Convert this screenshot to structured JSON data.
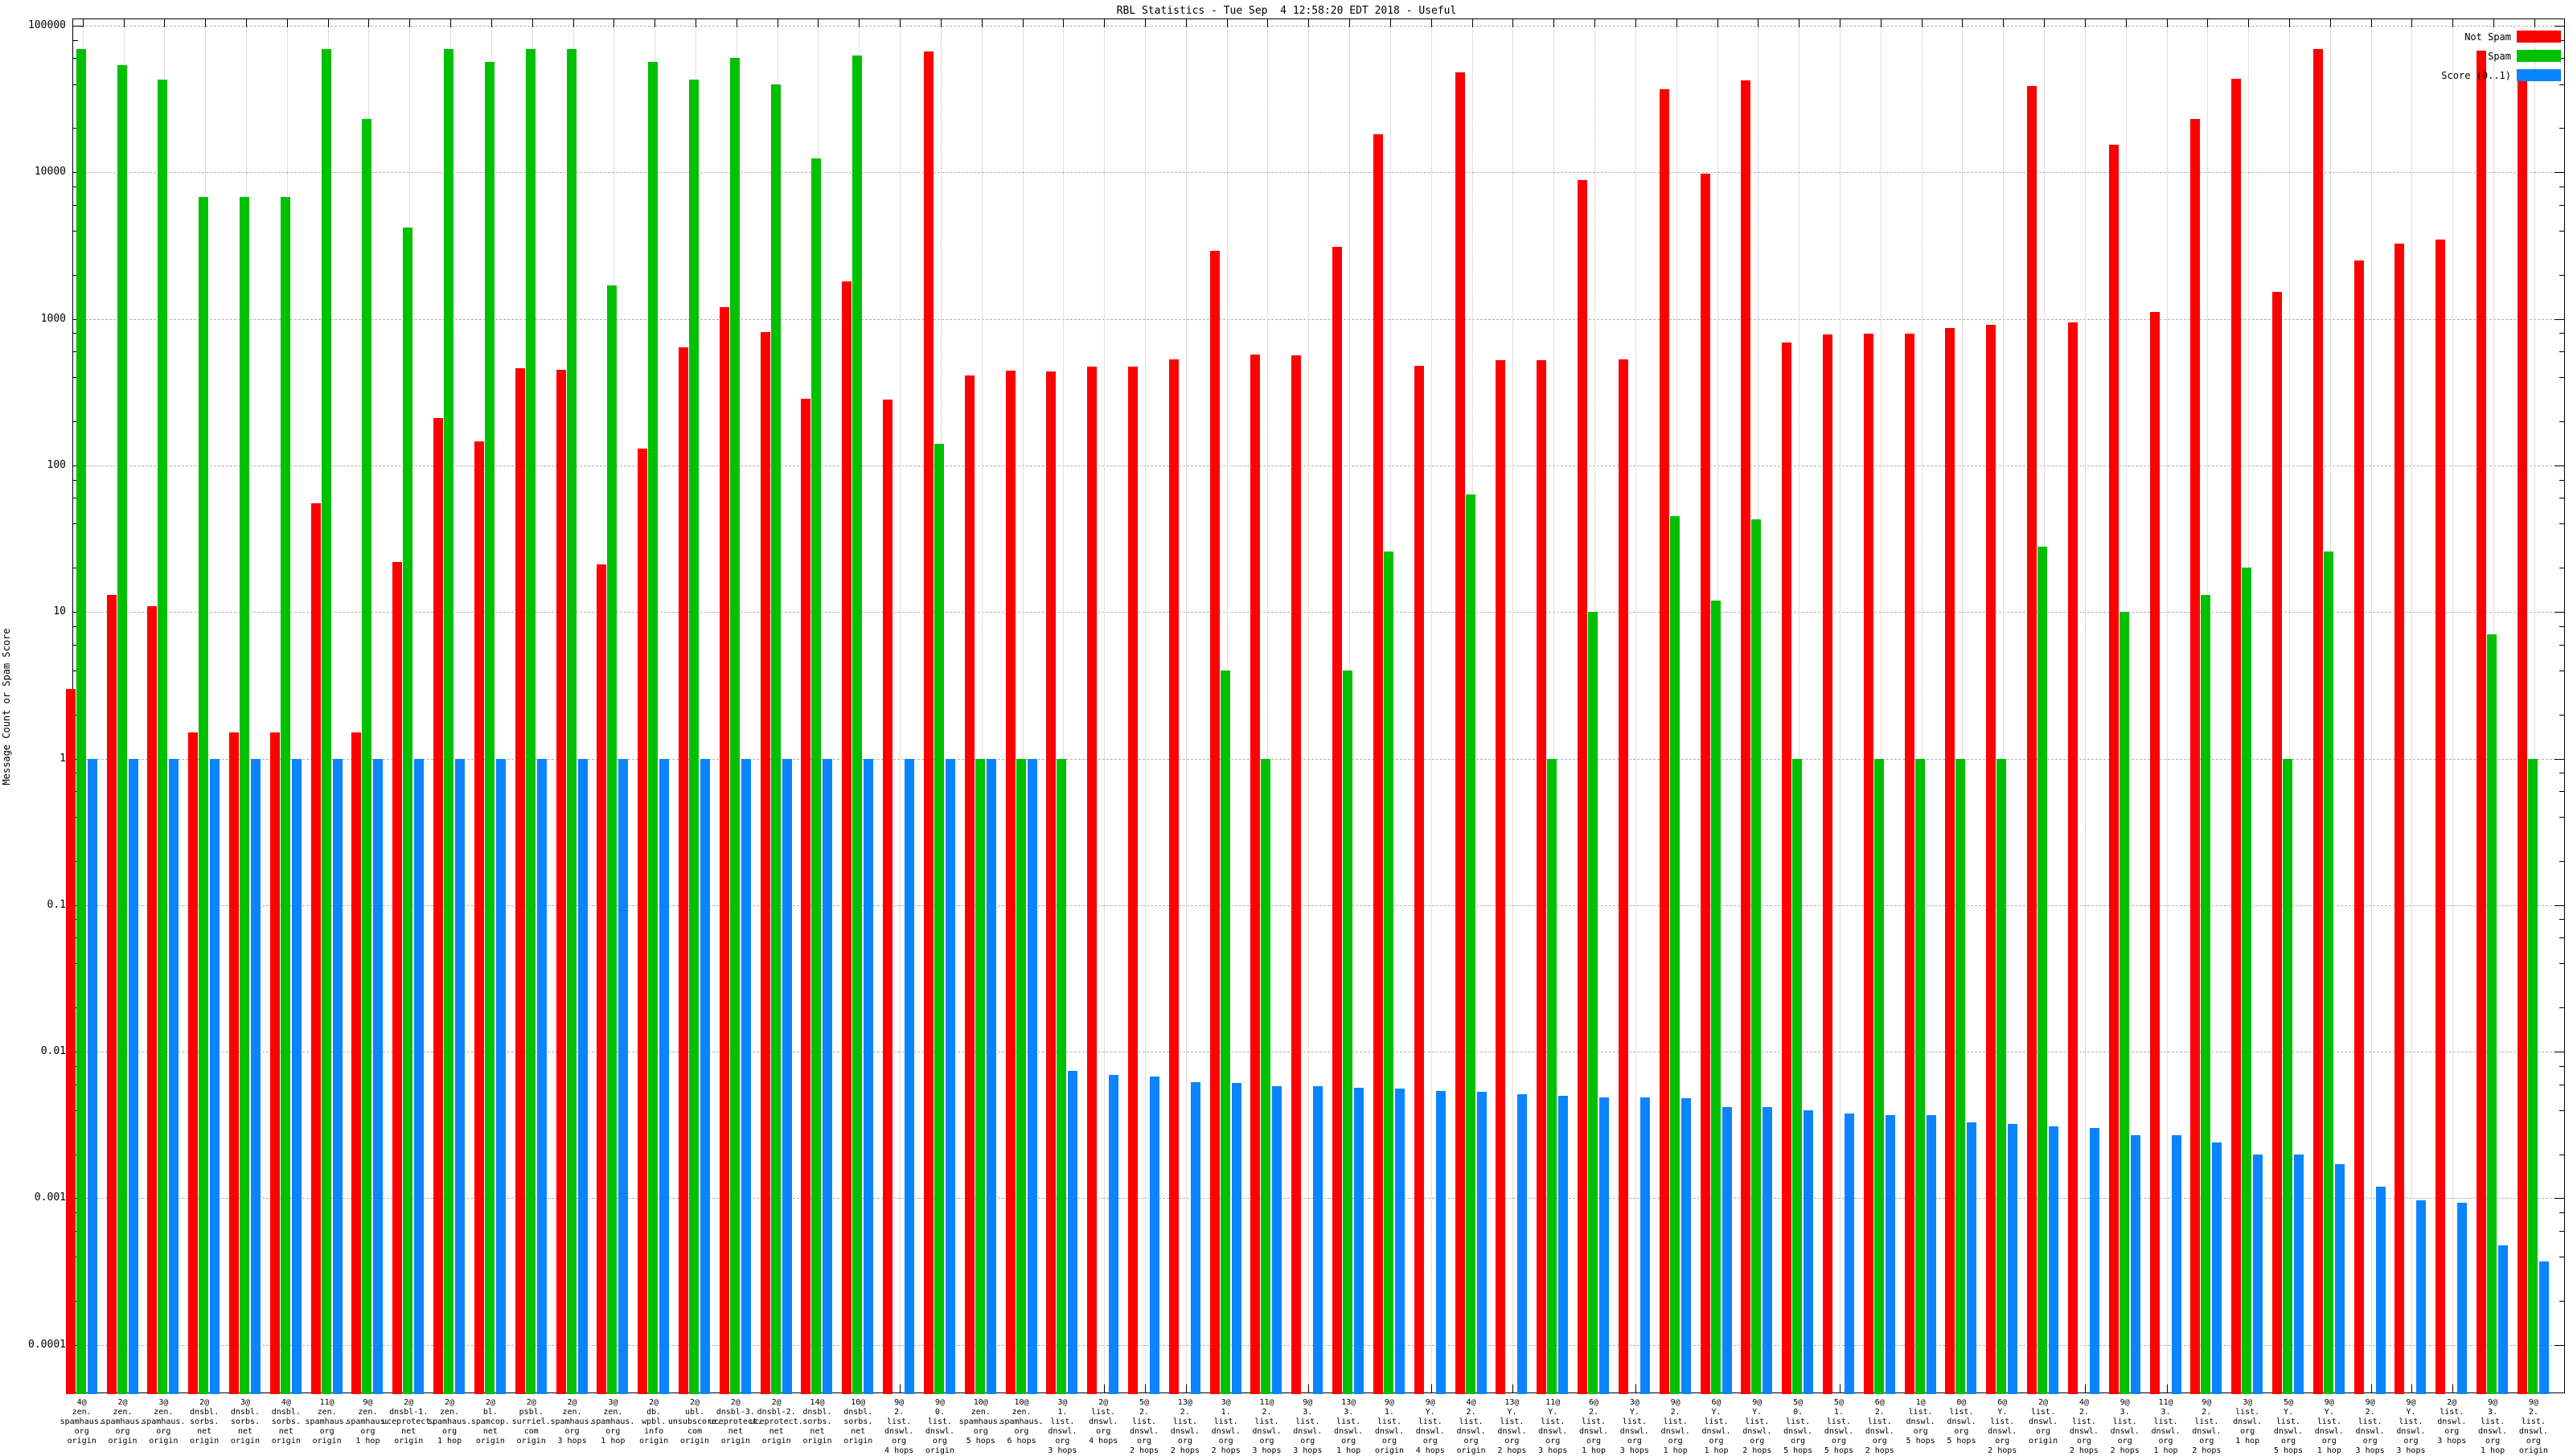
{
  "title": "RBL Statistics - Tue Sep  4 12:58:20 EDT 2018 - Useful",
  "legend": [
    {
      "label": "Not Spam",
      "color": "#ff0000"
    },
    {
      "label": "Spam",
      "color": "#00c000"
    },
    {
      "label": "Score (0..1)",
      "color": "#0a84ff"
    }
  ],
  "axes": {
    "ylabel": "Message Count or Spam Score",
    "yscale": "log",
    "ymin": 0.0001,
    "ymax": 100000,
    "ytick_labels": [
      "100000",
      "10000",
      "1000",
      "100",
      "10",
      "1",
      "0.1",
      "0.01",
      "0.001",
      "0.0001"
    ],
    "grid": true
  },
  "chart_data": {
    "type": "bar",
    "title": "RBL Statistics - Tue Sep  4 12:58:20 EDT 2018 - Useful",
    "xlabel": "",
    "ylabel": "Message Count or Spam Score",
    "yscale": "log",
    "ylim": [
      0.0001,
      100000
    ],
    "legend_position": "top-right",
    "series_names": [
      "Not Spam",
      "Spam",
      "Score (0..1)"
    ],
    "series_colors": [
      "#ff0000",
      "#00c000",
      "#0a84ff"
    ],
    "groups": [
      {
        "label_lines": [
          "4@",
          "zen.",
          "spamhaus.",
          "org",
          "origin"
        ],
        "not_spam": 3,
        "spam": 69000,
        "score": 1
      },
      {
        "label_lines": [
          "2@",
          "zen.",
          "spamhaus.",
          "org",
          "origin"
        ],
        "not_spam": 13,
        "spam": 54000,
        "score": 1
      },
      {
        "label_lines": [
          "3@",
          "zen.",
          "spamhaus.",
          "org",
          "origin"
        ],
        "not_spam": 11,
        "spam": 43000,
        "score": 1
      },
      {
        "label_lines": [
          "2@",
          "dnsbl.",
          "sorbs.",
          "net",
          "origin"
        ],
        "not_spam": 1.5,
        "spam": 6800,
        "score": 1
      },
      {
        "label_lines": [
          "3@",
          "dnsbl.",
          "sorbs.",
          "net",
          "origin"
        ],
        "not_spam": 1.5,
        "spam": 6800,
        "score": 1
      },
      {
        "label_lines": [
          "4@",
          "dnsbl.",
          "sorbs.",
          "net",
          "origin"
        ],
        "not_spam": 1.5,
        "spam": 6800,
        "score": 1
      },
      {
        "label_lines": [
          "11@",
          "zen.",
          "spamhaus.",
          "org",
          "origin"
        ],
        "not_spam": 55,
        "spam": 69000,
        "score": 1
      },
      {
        "label_lines": [
          "9@",
          "zen.",
          "spamhaus.",
          "org",
          "1 hop"
        ],
        "not_spam": 1.5,
        "spam": 23000,
        "score": 1
      },
      {
        "label_lines": [
          "2@",
          "dnsbl-1.",
          "uceprotect.",
          "net",
          "origin"
        ],
        "not_spam": 22,
        "spam": 4200,
        "score": 1
      },
      {
        "label_lines": [
          "2@",
          "zen.",
          "spamhaus.",
          "org",
          "1 hop"
        ],
        "not_spam": 210,
        "spam": 69000,
        "score": 1
      },
      {
        "label_lines": [
          "2@",
          "bl.",
          "spamcop.",
          "net",
          "origin"
        ],
        "not_spam": 145,
        "spam": 57000,
        "score": 1
      },
      {
        "label_lines": [
          "2@",
          "psbl.",
          "surriel.",
          "com",
          "origin"
        ],
        "not_spam": 460,
        "spam": 69000,
        "score": 1
      },
      {
        "label_lines": [
          "2@",
          "zen.",
          "spamhaus.",
          "org",
          "3 hops"
        ],
        "not_spam": 450,
        "spam": 69000,
        "score": 1
      },
      {
        "label_lines": [
          "3@",
          "zen.",
          "spamhaus.",
          "org",
          "1 hop"
        ],
        "not_spam": 21,
        "spam": 1700,
        "score": 1
      },
      {
        "label_lines": [
          "2@",
          "db.",
          "wpbl.",
          "info",
          "origin"
        ],
        "not_spam": 130,
        "spam": 57000,
        "score": 1
      },
      {
        "label_lines": [
          "2@",
          "ubl.",
          "unsubscore.",
          "com",
          "origin"
        ],
        "not_spam": 640,
        "spam": 43000,
        "score": 1
      },
      {
        "label_lines": [
          "2@",
          "dnsbl-3.",
          "uceprotect.",
          "net",
          "origin"
        ],
        "not_spam": 1200,
        "spam": 60000,
        "score": 1
      },
      {
        "label_lines": [
          "2@",
          "dnsbl-2.",
          "uceprotect.",
          "net",
          "origin"
        ],
        "not_spam": 815,
        "spam": 40000,
        "score": 1
      },
      {
        "label_lines": [
          "14@",
          "dnsbl.",
          "sorbs.",
          "net",
          "origin"
        ],
        "not_spam": 285,
        "spam": 12500,
        "score": 1
      },
      {
        "label_lines": [
          "10@",
          "dnsbl.",
          "sorbs.",
          "net",
          "origin"
        ],
        "not_spam": 1800,
        "spam": 63000,
        "score": 1
      },
      {
        "label_lines": [
          "9@",
          "2.",
          "list.",
          "dnswl.",
          "org",
          "4 hops"
        ],
        "not_spam": 280,
        "spam": 0,
        "score": 1
      },
      {
        "label_lines": [
          "9@",
          "0.",
          "list.",
          "dnswl.",
          "org",
          "origin"
        ],
        "not_spam": 67000,
        "spam": 140,
        "score": 1
      },
      {
        "label_lines": [
          "10@",
          "zen.",
          "spamhaus.",
          "org",
          "5 hops"
        ],
        "not_spam": 410,
        "spam": 1,
        "score": 1
      },
      {
        "label_lines": [
          "10@",
          "zen.",
          "spamhaus.",
          "org",
          "6 hops"
        ],
        "not_spam": 445,
        "spam": 1,
        "score": 1
      },
      {
        "label_lines": [
          "3@",
          "1.",
          "list.",
          "dnswl.",
          "org",
          "3 hops"
        ],
        "not_spam": 440,
        "spam": 1,
        "score": 0.0074
      },
      {
        "label_lines": [
          "2@",
          "list.",
          "dnswl.",
          "org",
          "4 hops"
        ],
        "not_spam": 470,
        "spam": 0,
        "score": 0.0069
      },
      {
        "label_lines": [
          "5@",
          "2.",
          "list.",
          "dnswl.",
          "org",
          "2 hops"
        ],
        "not_spam": 475,
        "spam": 0,
        "score": 0.0068
      },
      {
        "label_lines": [
          "13@",
          "2.",
          "list.",
          "dnswl.",
          "org",
          "2 hops"
        ],
        "not_spam": 530,
        "spam": 0,
        "score": 0.0062
      },
      {
        "label_lines": [
          "3@",
          "1.",
          "list.",
          "dnswl.",
          "org",
          "2 hops"
        ],
        "not_spam": 2900,
        "spam": 4,
        "score": 0.0061
      },
      {
        "label_lines": [
          "11@",
          "2.",
          "list.",
          "dnswl.",
          "org",
          "3 hops"
        ],
        "not_spam": 570,
        "spam": 1,
        "score": 0.0058
      },
      {
        "label_lines": [
          "9@",
          "3.",
          "list.",
          "dnswl.",
          "org",
          "3 hops"
        ],
        "not_spam": 565,
        "spam": 0,
        "score": 0.0058
      },
      {
        "label_lines": [
          "13@",
          "3.",
          "list.",
          "dnswl.",
          "org",
          "1 hop"
        ],
        "not_spam": 3100,
        "spam": 4,
        "score": 0.0057
      },
      {
        "label_lines": [
          "9@",
          "1.",
          "list.",
          "dnswl.",
          "org",
          "origin"
        ],
        "not_spam": 18200,
        "spam": 26,
        "score": 0.0056
      },
      {
        "label_lines": [
          "9@",
          "Y.",
          "list.",
          "dnswl.",
          "org",
          "4 hops"
        ],
        "not_spam": 480,
        "spam": 0,
        "score": 0.0054
      },
      {
        "label_lines": [
          "4@",
          "2.",
          "list.",
          "dnswl.",
          "org",
          "origin"
        ],
        "not_spam": 48000,
        "spam": 63,
        "score": 0.0053
      },
      {
        "label_lines": [
          "13@",
          "Y.",
          "list.",
          "dnswl.",
          "org",
          "2 hops"
        ],
        "not_spam": 520,
        "spam": 0,
        "score": 0.0051
      },
      {
        "label_lines": [
          "11@",
          "Y.",
          "list.",
          "dnswl.",
          "org",
          "3 hops"
        ],
        "not_spam": 525,
        "spam": 1,
        "score": 0.005
      },
      {
        "label_lines": [
          "6@",
          "2.",
          "list.",
          "dnswl.",
          "org",
          "1 hop"
        ],
        "not_spam": 8800,
        "spam": 10,
        "score": 0.0049
      },
      {
        "label_lines": [
          "3@",
          "Y.",
          "list.",
          "dnswl.",
          "org",
          "3 hops"
        ],
        "not_spam": 530,
        "spam": 0,
        "score": 0.0049
      },
      {
        "label_lines": [
          "9@",
          "2.",
          "list.",
          "dnswl.",
          "org",
          "1 hop"
        ],
        "not_spam": 37000,
        "spam": 45,
        "score": 0.0048
      },
      {
        "label_lines": [
          "6@",
          "Y.",
          "list.",
          "dnswl.",
          "org",
          "1 hop"
        ],
        "not_spam": 9800,
        "spam": 12,
        "score": 0.0042
      },
      {
        "label_lines": [
          "9@",
          "Y.",
          "list.",
          "dnswl.",
          "org",
          "2 hops"
        ],
        "not_spam": 42500,
        "spam": 43,
        "score": 0.0042
      },
      {
        "label_lines": [
          "5@",
          "0.",
          "list.",
          "dnswl.",
          "org",
          "5 hops"
        ],
        "not_spam": 690,
        "spam": 1,
        "score": 0.004
      },
      {
        "label_lines": [
          "5@",
          "1.",
          "list.",
          "dnswl.",
          "org",
          "5 hops"
        ],
        "not_spam": 780,
        "spam": 0,
        "score": 0.0038
      },
      {
        "label_lines": [
          "6@",
          "2.",
          "list.",
          "dnswl.",
          "org",
          "2 hops"
        ],
        "not_spam": 790,
        "spam": 1,
        "score": 0.0037
      },
      {
        "label_lines": [
          "1@",
          "list.",
          "dnswl.",
          "org",
          "5 hops"
        ],
        "not_spam": 790,
        "spam": 1,
        "score": 0.0037
      },
      {
        "label_lines": [
          "0@",
          "list.",
          "dnswl.",
          "org",
          "5 hops"
        ],
        "not_spam": 870,
        "spam": 1,
        "score": 0.0033
      },
      {
        "label_lines": [
          "6@",
          "Y.",
          "list.",
          "dnswl.",
          "org",
          "2 hops"
        ],
        "not_spam": 910,
        "spam": 1,
        "score": 0.0032
      },
      {
        "label_lines": [
          "2@",
          "list.",
          "dnswl.",
          "org",
          "origin"
        ],
        "not_spam": 39000,
        "spam": 28,
        "score": 0.0031
      },
      {
        "label_lines": [
          "4@",
          "2.",
          "list.",
          "dnswl.",
          "org",
          "2 hops"
        ],
        "not_spam": 950,
        "spam": 0,
        "score": 0.003
      },
      {
        "label_lines": [
          "9@",
          "3.",
          "list.",
          "dnswl.",
          "org",
          "2 hops"
        ],
        "not_spam": 15500,
        "spam": 10,
        "score": 0.0027
      },
      {
        "label_lines": [
          "11@",
          "3.",
          "list.",
          "dnswl.",
          "org",
          "1 hop"
        ],
        "not_spam": 1120,
        "spam": 0,
        "score": 0.0027
      },
      {
        "label_lines": [
          "9@",
          "2.",
          "list.",
          "dnswl.",
          "org",
          "2 hops"
        ],
        "not_spam": 23000,
        "spam": 13,
        "score": 0.0024
      },
      {
        "label_lines": [
          "3@",
          "list.",
          "dnswl.",
          "org",
          "1 hop"
        ],
        "not_spam": 43500,
        "spam": 20,
        "score": 0.002
      },
      {
        "label_lines": [
          "5@",
          "Y.",
          "list.",
          "dnswl.",
          "org",
          "5 hops"
        ],
        "not_spam": 1530,
        "spam": 1,
        "score": 0.002
      },
      {
        "label_lines": [
          "9@",
          "Y.",
          "list.",
          "dnswl.",
          "org",
          "1 hop"
        ],
        "not_spam": 69000,
        "spam": 26,
        "score": 0.0017
      },
      {
        "label_lines": [
          "9@",
          "2.",
          "list.",
          "dnswl.",
          "org",
          "3 hops"
        ],
        "not_spam": 2500,
        "spam": 0,
        "score": 0.0012
      },
      {
        "label_lines": [
          "9@",
          "Y.",
          "list.",
          "dnswl.",
          "org",
          "3 hops"
        ],
        "not_spam": 3250,
        "spam": 0,
        "score": 0.00097
      },
      {
        "label_lines": [
          "2@",
          "list.",
          "dnswl.",
          "org",
          "3 hops"
        ],
        "not_spam": 3480,
        "spam": 0,
        "score": 0.00093
      },
      {
        "label_lines": [
          "9@",
          "3.",
          "list.",
          "dnswl.",
          "org",
          "1 hop"
        ],
        "not_spam": 68000,
        "spam": 7,
        "score": 0.00048
      },
      {
        "label_lines": [
          "9@",
          "2.",
          "list.",
          "dnswl.",
          "org",
          "origin"
        ],
        "not_spam": 42000,
        "spam": 1,
        "score": 0.00037
      }
    ]
  }
}
